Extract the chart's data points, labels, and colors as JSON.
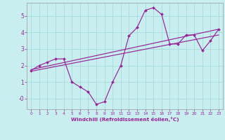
{
  "bg_color": "#c8eef0",
  "grid_color": "#aadddd",
  "line_color": "#992299",
  "xlabel": "Windchill (Refroidissement éolien,°C)",
  "xlim": [
    -0.5,
    23.5
  ],
  "ylim": [
    -0.65,
    5.8
  ],
  "xticks": [
    0,
    1,
    2,
    3,
    4,
    5,
    6,
    7,
    8,
    9,
    10,
    11,
    12,
    13,
    14,
    15,
    16,
    17,
    18,
    19,
    20,
    21,
    22,
    23
  ],
  "yticks": [
    0,
    1,
    2,
    3,
    4,
    5
  ],
  "ytick_labels": [
    "-0",
    "1",
    "2",
    "3",
    "4",
    "5"
  ],
  "line1_x": [
    0,
    1,
    2,
    3,
    4,
    5,
    6,
    7,
    8,
    9,
    10,
    11,
    12,
    13,
    14,
    15,
    16,
    17,
    18,
    19,
    20,
    21,
    22,
    23
  ],
  "line1_y": [
    1.7,
    2.0,
    2.2,
    2.4,
    2.4,
    1.0,
    0.7,
    0.4,
    -0.35,
    -0.2,
    1.0,
    2.0,
    3.8,
    4.3,
    5.35,
    5.5,
    5.1,
    3.3,
    3.3,
    3.85,
    3.85,
    2.9,
    3.5,
    4.2
  ],
  "line2_x": [
    0,
    23
  ],
  "line2_y": [
    1.75,
    4.2
  ],
  "line3_x": [
    0,
    23
  ],
  "line3_y": [
    1.65,
    3.85
  ]
}
